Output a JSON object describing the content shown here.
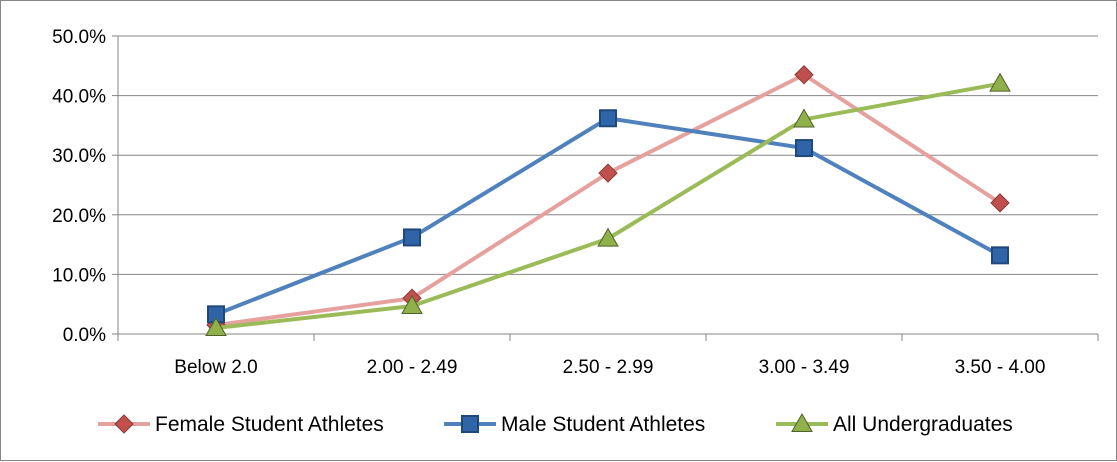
{
  "chart_data": {
    "type": "line",
    "title": "",
    "xlabel": "",
    "ylabel": "",
    "categories": [
      "Below 2.0",
      "2.00 - 2.49",
      "2.50 - 2.99",
      "3.00 - 3.49",
      "3.50 - 4.00"
    ],
    "y_tick_labels": [
      "0.0%",
      "10.0%",
      "20.0%",
      "30.0%",
      "40.0%",
      "50.0%"
    ],
    "ylim": [
      0,
      50
    ],
    "grid": true,
    "legend_position": "bottom",
    "series": [
      {
        "name": "Female Student Athletes",
        "values": [
          1.5,
          6.0,
          27.0,
          43.5,
          22.0
        ],
        "line_color": "#e6a19e",
        "marker": "diamond",
        "marker_color": "#c0504d",
        "marker_stroke": "#8c3836"
      },
      {
        "name": "Male Student Athletes",
        "values": [
          3.3,
          16.2,
          36.2,
          31.2,
          13.2
        ],
        "line_color": "#4f81bd",
        "marker": "square",
        "marker_color": "#2f64a8",
        "marker_stroke": "#1f497d"
      },
      {
        "name": "All Undergraduates",
        "values": [
          1.0,
          4.7,
          16.0,
          36.0,
          42.0
        ],
        "line_color": "#9bbb59",
        "marker": "triangle",
        "marker_color": "#8fb04a",
        "marker_stroke": "#4f6228"
      }
    ]
  }
}
